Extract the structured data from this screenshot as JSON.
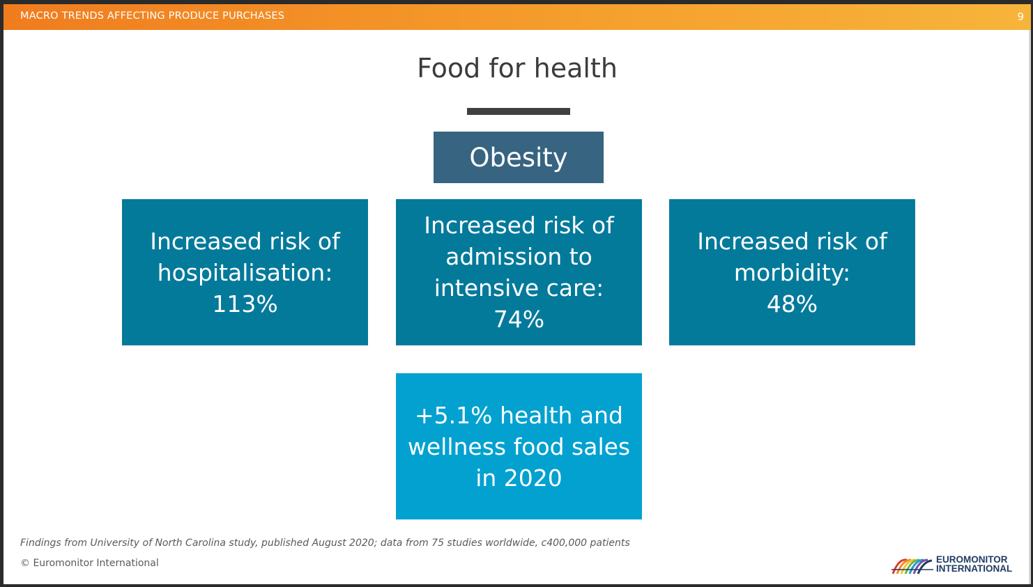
{
  "header": {
    "section_title": "MACRO TRENDS AFFECTING PRODUCE PURCHASES",
    "page_number": "9"
  },
  "slide": {
    "title": "Food for health",
    "top_box": "Obesity",
    "risk_boxes": [
      {
        "lines": [
          "Increased risk of",
          "hospitalisation:",
          "113%"
        ]
      },
      {
        "lines": [
          "Increased risk of",
          "admission to",
          "intensive care:",
          "74%"
        ]
      },
      {
        "lines": [
          "Increased risk of",
          "morbidity:",
          "48%"
        ]
      }
    ],
    "sales_box": {
      "lines": [
        "+5.1% health and",
        "wellness food sales",
        "in 2020"
      ]
    }
  },
  "footer": {
    "footnote": "Findings from University of North Carolina study, published August 2020; data from 75 studies worldwide, c400,000 patients",
    "copyright": "© Euromonitor International",
    "logo_line1": "EUROMONITOR",
    "logo_line2": "INTERNATIONAL"
  },
  "colors": {
    "header_gradient_start": "#f07c1e",
    "header_gradient_end": "#f7b43a",
    "obesity_box": "#376480",
    "risk_box": "#047a9b",
    "sales_box": "#03a1d0"
  }
}
